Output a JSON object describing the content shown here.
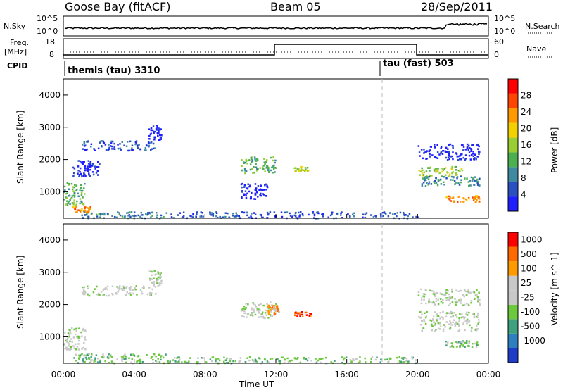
{
  "header": {
    "station": "Goose Bay (fitACF)",
    "beam": "Beam 05",
    "date": "28/Sep/2011"
  },
  "top_panels": {
    "nsky_label": "N.Sky",
    "nsky_ticks": [
      "10^5",
      "10^0"
    ],
    "nsearch_label": "N.Search",
    "nsearch_ticks": [
      "10^5",
      "10^0"
    ],
    "freq_label_line1": "Freq.",
    "freq_label_line2": "[MHz]",
    "freq_ticks": [
      "18",
      "8"
    ],
    "nave_label": "Nave",
    "nave_ticks": [
      "60",
      "0"
    ],
    "cpid_label": "CPID",
    "cpid_entries": [
      {
        "text": "themis (tau) 3310",
        "start_hour": 0
      },
      {
        "text": "tau (fast) 503",
        "start_hour": 18
      }
    ]
  },
  "chart_data": [
    {
      "type": "heatmap",
      "name": "power",
      "xlabel": "Time UT",
      "ylabel": "Slant Range [km]",
      "xlim": [
        0,
        24
      ],
      "ylim": [
        180,
        4500
      ],
      "x_tick_labels": [
        "00:00",
        "04:00",
        "08:00",
        "12:00",
        "16:00",
        "20:00",
        "00:00"
      ],
      "x_tick_hours": [
        0,
        4,
        8,
        12,
        16,
        20,
        24
      ],
      "y_ticks": [
        1000,
        2000,
        3000,
        4000
      ],
      "colorbar": {
        "label": "Power [dB]",
        "tick_labels": [
          "4",
          "8",
          "12",
          "16",
          "20",
          "24",
          "28"
        ],
        "colors": [
          "#1e1eff",
          "#2a4fc0",
          "#3f8aa0",
          "#4caf50",
          "#9acd32",
          "#f5d000",
          "#ff9900",
          "#ff4500",
          "#ff0000"
        ]
      },
      "regions": [
        {
          "t0": 0.0,
          "t1": 1.2,
          "r0": 600,
          "r1": 1300,
          "level": 3
        },
        {
          "t0": 0.5,
          "t1": 1.5,
          "r0": 350,
          "r1": 560,
          "level": 6
        },
        {
          "t0": 1.0,
          "t1": 6.0,
          "r0": 200,
          "r1": 400,
          "level": 2
        },
        {
          "t0": 0.5,
          "t1": 2.0,
          "r0": 1500,
          "r1": 2000,
          "level": 0
        },
        {
          "t0": 1.0,
          "t1": 5.2,
          "r0": 2300,
          "r1": 2600,
          "level": 1
        },
        {
          "t0": 4.8,
          "t1": 5.5,
          "r0": 2600,
          "r1": 3100,
          "level": 0
        },
        {
          "t0": 10.0,
          "t1": 12.0,
          "r0": 1600,
          "r1": 2100,
          "level": 3
        },
        {
          "t0": 10.0,
          "t1": 11.5,
          "r0": 800,
          "r1": 1300,
          "level": 0
        },
        {
          "t0": 13.0,
          "t1": 13.8,
          "r0": 1650,
          "r1": 1800,
          "level": 4
        },
        {
          "t0": 20.0,
          "t1": 22.5,
          "r0": 1500,
          "r1": 1800,
          "level": 4
        },
        {
          "t0": 20.2,
          "t1": 23.5,
          "r0": 1200,
          "r1": 1500,
          "level": 2
        },
        {
          "t0": 20.0,
          "t1": 23.5,
          "r0": 2000,
          "r1": 2500,
          "level": 0
        },
        {
          "t0": 21.5,
          "t1": 23.5,
          "r0": 700,
          "r1": 900,
          "level": 6
        },
        {
          "t0": 6.0,
          "t1": 20.0,
          "r0": 200,
          "r1": 400,
          "level": 1
        }
      ]
    },
    {
      "type": "heatmap",
      "name": "velocity",
      "xlabel": "Time UT",
      "ylabel": "Slant Range [km]",
      "xlim": [
        0,
        24
      ],
      "ylim": [
        180,
        4500
      ],
      "x_tick_labels": [
        "00:00",
        "04:00",
        "08:00",
        "12:00",
        "16:00",
        "20:00",
        "00:00"
      ],
      "x_tick_hours": [
        0,
        4,
        8,
        12,
        16,
        20,
        24
      ],
      "y_ticks": [
        1000,
        2000,
        3000,
        4000
      ],
      "colorbar": {
        "label": "Velocity [m s^-1]",
        "tick_labels": [
          "1000",
          "500",
          "100",
          "25",
          "-25",
          "-100",
          "-500",
          "-1000"
        ],
        "colors": [
          "#1e3cc8",
          "#2e7ec0",
          "#3fa080",
          "#6cc83c",
          "#c8c8c8",
          "#c8c8c8",
          "#ff9900",
          "#ff6a00",
          "#ff0000"
        ]
      },
      "regions": [
        {
          "t0": 0.0,
          "t1": 1.2,
          "r0": 600,
          "r1": 1300,
          "level": 4
        },
        {
          "t0": 0.5,
          "t1": 6.0,
          "r0": 200,
          "r1": 500,
          "level": 3
        },
        {
          "t0": 1.0,
          "t1": 5.2,
          "r0": 2300,
          "r1": 2600,
          "level": 4
        },
        {
          "t0": 4.8,
          "t1": 5.5,
          "r0": 2600,
          "r1": 3100,
          "level": 4
        },
        {
          "t0": 10.0,
          "t1": 12.0,
          "r0": 1600,
          "r1": 2100,
          "level": 4
        },
        {
          "t0": 11.5,
          "t1": 12.2,
          "r0": 1700,
          "r1": 2000,
          "level": 6
        },
        {
          "t0": 13.0,
          "t1": 14.0,
          "r0": 1650,
          "r1": 1800,
          "level": 7
        },
        {
          "t0": 20.0,
          "t1": 23.5,
          "r0": 1200,
          "r1": 1800,
          "level": 4
        },
        {
          "t0": 21.5,
          "t1": 23.5,
          "r0": 700,
          "r1": 900,
          "level": 3
        },
        {
          "t0": 20.0,
          "t1": 23.5,
          "r0": 2000,
          "r1": 2500,
          "level": 4
        },
        {
          "t0": 6.0,
          "t1": 20.0,
          "r0": 200,
          "r1": 400,
          "level": 3
        }
      ]
    }
  ]
}
